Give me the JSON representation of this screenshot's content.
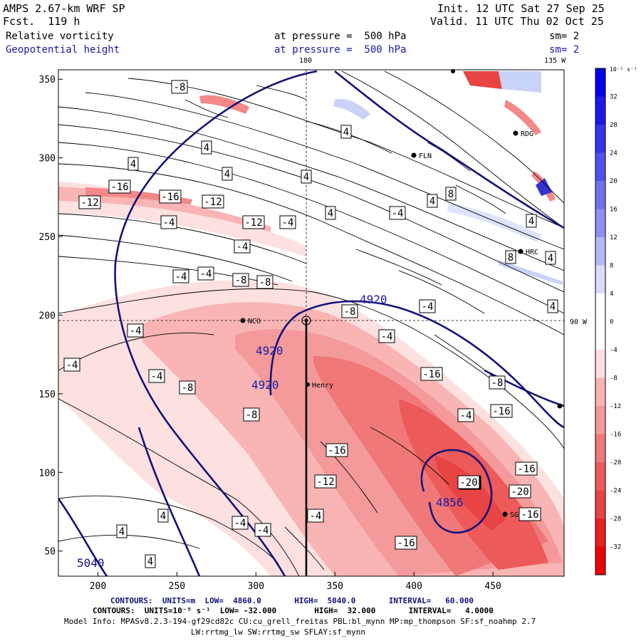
{
  "header": {
    "model": "AMPS 2.67-km WRF SP",
    "forecast": "Fcst.  119 h",
    "init": "Init. 12 UTC Sat 27 Sep 25",
    "valid": "Valid. 11 UTC Thu 02 Oct 25",
    "field1": "Relative vorticity",
    "field2": "Geopotential height",
    "level1": "at pressure =  500 hPa",
    "level2": "at pressure =  500 hPa",
    "sm1": "sm= 2",
    "sm2": "sm= 2"
  },
  "map": {
    "lon180": "180",
    "lon135": "135 W",
    "lon90": "90 W",
    "stations": [
      "NCO",
      "Henry",
      "RDG",
      "FLN",
      "HRC",
      "SG"
    ],
    "height_labels": [
      "4920",
      "4920",
      "4920",
      "4856",
      "5040"
    ],
    "colors": {
      "height": "#12127a",
      "neg": "#e83030",
      "pos": "#1a1aee"
    }
  },
  "chart_data": {
    "type": "heatmap",
    "x_ticks": [
      200,
      250,
      300,
      350,
      400,
      450
    ],
    "y_ticks": [
      50,
      100,
      150,
      200,
      250,
      300,
      350
    ],
    "xlim": [
      175,
      495
    ],
    "ylim": [
      34,
      356
    ],
    "vorticity_labels": [
      "-8",
      "4",
      "4",
      "4",
      "-16",
      "-12",
      "-16",
      "-12",
      "4",
      "4",
      "-4",
      "-4",
      "-12",
      "-4",
      "4",
      "-4",
      "4",
      "8",
      "-4",
      "4",
      "-4",
      "-4",
      "-8",
      "-8",
      "4",
      "8",
      "4",
      "-8",
      "-4",
      "-4",
      "-4",
      "-8",
      "-16",
      "-8",
      "-4",
      "-4",
      "-16",
      "-16",
      "-20",
      "-8",
      "-16",
      "-12",
      "-16",
      "-20",
      "-16",
      "-20",
      "-4",
      "4",
      "4",
      "-4",
      "-4",
      "4",
      "-16"
    ],
    "colorbar": {
      "title": "10⁻⁵ s⁻¹",
      "ticks": [
        "32",
        "28",
        "24",
        "20",
        "16",
        "12",
        "8",
        "4",
        "0",
        "-4",
        "-8",
        "-12",
        "-16",
        "-20",
        "-24",
        "-28",
        "-32"
      ]
    }
  },
  "footer": {
    "line1": "CONTOURS:  UNITS=m  LOW=  4860.0       HIGH=  5040.0       INTERVAL=   60.000",
    "line2": "CONTOURS:  UNITS=10⁻⁵ s⁻¹  LOW= -32.000        HIGH=  32.000       INTERVAL=   4.0000",
    "line3": "Model Info: MPASv8.2.3-194-gf29cd82c CU:cu_grell_freitas PBL:bl_mynn MP:mp_thompson SF:sf_noahmp 2.7",
    "line4": "LW:rrtmg_lw SW:rrtmg_sw SFLAY:sf_mynn"
  }
}
